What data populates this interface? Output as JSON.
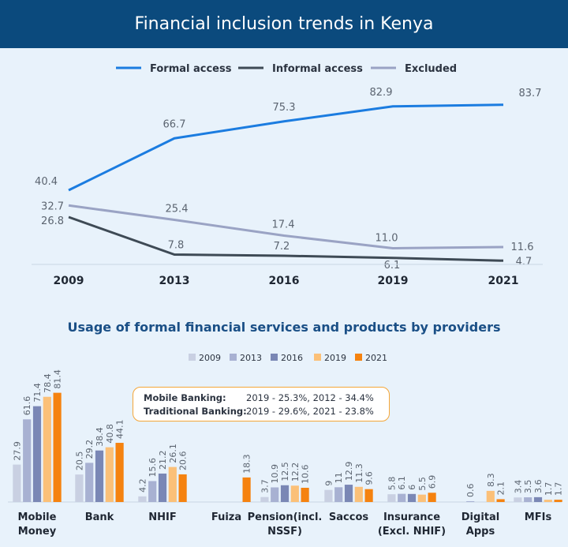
{
  "header": {
    "title": "Financial inclusion trends in Kenya"
  },
  "colors": {
    "formal": "#1b7ce0",
    "informal": "#3e4a55",
    "excluded": "#9aa3c4",
    "s2009": "#c9d0e2",
    "s2013": "#a8b1d2",
    "s2016": "#7a87b5",
    "s2019": "#fbc078",
    "s2021": "#f5820f"
  },
  "chart_data": [
    {
      "type": "line",
      "title": "Financial inclusion trends in Kenya",
      "categories": [
        "2009",
        "2013",
        "2016",
        "2019",
        "2021"
      ],
      "ylim": [
        0,
        100
      ],
      "series": [
        {
          "name": "Formal access",
          "values": [
            40.4,
            66.7,
            75.3,
            82.9,
            83.7
          ],
          "labels": [
            "40.4",
            "66.7",
            "75.3",
            "82.9",
            "83.7"
          ]
        },
        {
          "name": "Informal access",
          "values": [
            26.8,
            7.8,
            7.2,
            6.1,
            4.7
          ],
          "labels": [
            "26.8",
            "7.8",
            "7.2",
            "6.1",
            "4.7"
          ]
        },
        {
          "name": "Excluded",
          "values": [
            32.7,
            25.4,
            17.4,
            11.0,
            11.6
          ],
          "labels": [
            "32.7",
            "25.4",
            "17.4",
            "11.0",
            "11.6"
          ]
        }
      ]
    },
    {
      "type": "bar",
      "title": "Usage of formal financial services and products by providers",
      "categories": [
        [
          "Mobile",
          "Money"
        ],
        [
          "Bank"
        ],
        [
          "NHIF"
        ],
        [
          "Fuiza"
        ],
        [
          "Pension(incl.",
          "NSSF)"
        ],
        [
          "Saccos"
        ],
        [
          "Insurance",
          "(Excl. NHIF)"
        ],
        [
          "Digital",
          "Apps"
        ],
        [
          "MFIs"
        ]
      ],
      "ylim": [
        0,
        100
      ],
      "series": [
        {
          "name": "2009",
          "values": [
            27.9,
            20.5,
            4.2,
            null,
            3.7,
            9,
            5.8,
            null,
            3.4
          ],
          "labels": [
            "27.9",
            "20.5",
            "4.2",
            "",
            "3.7",
            "9",
            "5.8",
            "",
            "3.4"
          ]
        },
        {
          "name": "2013",
          "values": [
            61.6,
            29.2,
            15.6,
            null,
            10.9,
            11,
            6.1,
            0.6,
            3.5
          ],
          "labels": [
            "61.6",
            "29.2",
            "15.6",
            "",
            "10.9",
            "11",
            "6.1",
            "0.6",
            "3.5"
          ]
        },
        {
          "name": "2016",
          "values": [
            71.4,
            38.4,
            21.2,
            null,
            12.5,
            12.9,
            6,
            null,
            3.6
          ],
          "labels": [
            "71.4",
            "38.4",
            "21.2",
            "",
            "12.5",
            "12.9",
            "6",
            "",
            "3.6"
          ]
        },
        {
          "name": "2019",
          "values": [
            78.4,
            40.8,
            26.1,
            null,
            12.2,
            11.3,
            5.5,
            8.3,
            1.7
          ],
          "labels": [
            "78.4",
            "40.8",
            "26.1",
            "",
            "12.2",
            "11.3",
            "5.5",
            "8.3",
            "1.7"
          ]
        },
        {
          "name": "2021",
          "values": [
            81.4,
            44.1,
            20.6,
            18.3,
            10.6,
            9.6,
            6.9,
            2.1,
            1.7
          ],
          "labels": [
            "81.4",
            "44.1",
            "20.6",
            "18.3",
            "10.6",
            "9.6",
            "6.9",
            "2.1",
            "1.7"
          ]
        }
      ],
      "annotation": {
        "mobile_label": "Mobile Banking:",
        "mobile_text": "2019 - 25.3%, 2012 - 34.4%",
        "traditional_label": "Traditional Banking:",
        "traditional_text": "2019 - 29.6%, 2021 - 23.8%"
      }
    }
  ]
}
